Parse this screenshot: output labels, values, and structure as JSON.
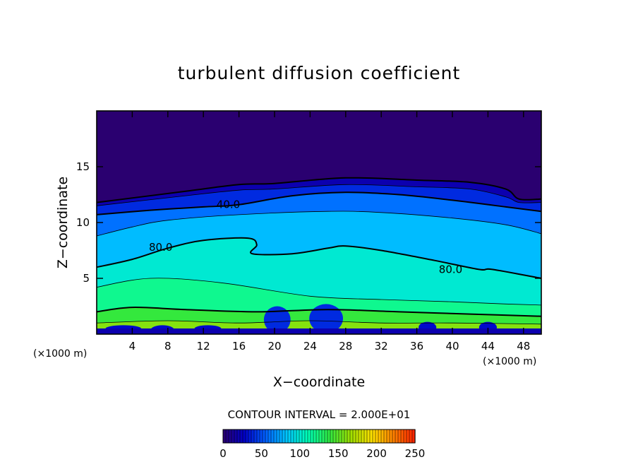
{
  "chart_data": {
    "type": "heatmap",
    "title": "turbulent diffusion coefficient",
    "xlabel": "X−coordinate",
    "ylabel": "Z−coordinate",
    "x_unit_left": "(×1000 m)",
    "x_unit_right": "(×1000 m)",
    "xlim": [
      0,
      50
    ],
    "ylim": [
      0,
      20
    ],
    "x_ticks": [
      4,
      8,
      12,
      16,
      20,
      24,
      28,
      32,
      36,
      40,
      44,
      48
    ],
    "x_tick_labels": [
      "4",
      "8",
      "12",
      "16",
      "20",
      "24",
      "28",
      "32",
      "36",
      "40",
      "44",
      "48"
    ],
    "y_ticks": [
      5,
      10,
      15
    ],
    "y_tick_labels": [
      "5",
      "10",
      "15"
    ],
    "contour_interval_text": "CONTOUR INTERVAL = 2.000E+01",
    "contour_interval": 20,
    "value_range": [
      0,
      250
    ],
    "colorbar_ticks": [
      0,
      50,
      100,
      150,
      200,
      250
    ],
    "colorbar_tick_labels": [
      "0",
      "50",
      "100",
      "150",
      "200",
      "250"
    ],
    "colormap_stops": [
      "#2a0070",
      "#0000c8",
      "#0060ff",
      "#00c8ff",
      "#00ffb4",
      "#30e840",
      "#a0e000",
      "#ffe000",
      "#ff8000",
      "#ff2000"
    ],
    "contour_labels": [
      {
        "text": "40.0",
        "x": 14.8,
        "z": 11.6
      },
      {
        "text": "80.0",
        "x": 7.2,
        "z": 7.8
      },
      {
        "text": "80.0",
        "x": 39.8,
        "z": 5.8
      }
    ],
    "layers": [
      {
        "value": 0,
        "top_profile": [
          [
            0,
            11.8
          ],
          [
            10,
            12.8
          ],
          [
            16,
            13.4
          ],
          [
            20,
            13.5
          ],
          [
            28,
            14.0
          ],
          [
            36,
            13.8
          ],
          [
            42,
            13.6
          ],
          [
            46,
            13.0
          ],
          [
            47.5,
            12.1
          ],
          [
            50,
            12.1
          ]
        ]
      },
      {
        "value": 20,
        "top_profile": [
          [
            0,
            11.5
          ],
          [
            10,
            12.4
          ],
          [
            16,
            12.9
          ],
          [
            20,
            13.0
          ],
          [
            28,
            13.4
          ],
          [
            36,
            13.2
          ],
          [
            42,
            13.0
          ],
          [
            46,
            12.3
          ],
          [
            47.5,
            11.8
          ],
          [
            50,
            11.8
          ]
        ]
      },
      {
        "value": 40,
        "top_profile": [
          [
            0,
            10.7
          ],
          [
            6,
            11.1
          ],
          [
            12,
            11.4
          ],
          [
            16,
            11.6
          ],
          [
            22,
            12.4
          ],
          [
            28,
            12.7
          ],
          [
            34,
            12.5
          ],
          [
            40,
            12.0
          ],
          [
            46,
            11.4
          ],
          [
            50,
            11.0
          ]
        ]
      },
      {
        "value": 60,
        "top_profile": [
          [
            0,
            8.8
          ],
          [
            4,
            9.6
          ],
          [
            8,
            10.2
          ],
          [
            16,
            10.7
          ],
          [
            26,
            11.0
          ],
          [
            32,
            10.9
          ],
          [
            40,
            10.4
          ],
          [
            46,
            9.8
          ],
          [
            50,
            9.0
          ]
        ]
      },
      {
        "value": 80,
        "top_profile": [
          [
            0,
            6.0
          ],
          [
            4,
            6.7
          ],
          [
            8,
            7.7
          ],
          [
            12,
            8.4
          ],
          [
            17,
            8.6
          ],
          [
            18,
            8.0
          ],
          [
            17.5,
            7.2
          ],
          [
            22,
            7.2
          ],
          [
            26,
            7.7
          ],
          [
            28,
            7.9
          ],
          [
            32,
            7.5
          ],
          [
            38,
            6.6
          ],
          [
            43,
            5.8
          ],
          [
            44.5,
            5.8
          ],
          [
            50,
            5.0
          ]
        ]
      },
      {
        "value": 100,
        "top_profile": [
          [
            0,
            4.2
          ],
          [
            6,
            5.0
          ],
          [
            14,
            4.6
          ],
          [
            24,
            3.4
          ],
          [
            32,
            3.1
          ],
          [
            40,
            2.9
          ],
          [
            46,
            2.7
          ],
          [
            50,
            2.6
          ]
        ]
      },
      {
        "value": 120,
        "top_profile": [
          [
            0,
            2.0
          ],
          [
            4,
            2.4
          ],
          [
            10,
            2.2
          ],
          [
            18,
            2.0
          ],
          [
            26,
            2.2
          ],
          [
            34,
            2.0
          ],
          [
            42,
            1.8
          ],
          [
            50,
            1.6
          ]
        ]
      },
      {
        "value": 140,
        "top_profile": [
          [
            0,
            1.0
          ],
          [
            8,
            1.2
          ],
          [
            16,
            1.0
          ],
          [
            24,
            1.2
          ],
          [
            32,
            1.0
          ],
          [
            40,
            1.0
          ],
          [
            50,
            0.9
          ]
        ]
      }
    ],
    "cells": [
      {
        "x": 20.3,
        "z": 1.3,
        "w": 3.0,
        "h": 2.4,
        "value": 40
      },
      {
        "x": 25.8,
        "z": 1.4,
        "w": 3.8,
        "h": 2.6,
        "value": 40
      },
      {
        "x": 7.4,
        "z": 0.4,
        "w": 2.6,
        "h": 0.8,
        "value": 30
      },
      {
        "x": 37.2,
        "z": 0.6,
        "w": 2.0,
        "h": 1.0,
        "value": 30
      },
      {
        "x": 44.0,
        "z": 0.6,
        "w": 2.0,
        "h": 1.0,
        "value": 30
      },
      {
        "x": 3.0,
        "z": 0.5,
        "w": 4.0,
        "h": 0.6,
        "value": 30
      },
      {
        "x": 12.5,
        "z": 0.5,
        "w": 3.0,
        "h": 0.6,
        "value": 30
      }
    ]
  }
}
